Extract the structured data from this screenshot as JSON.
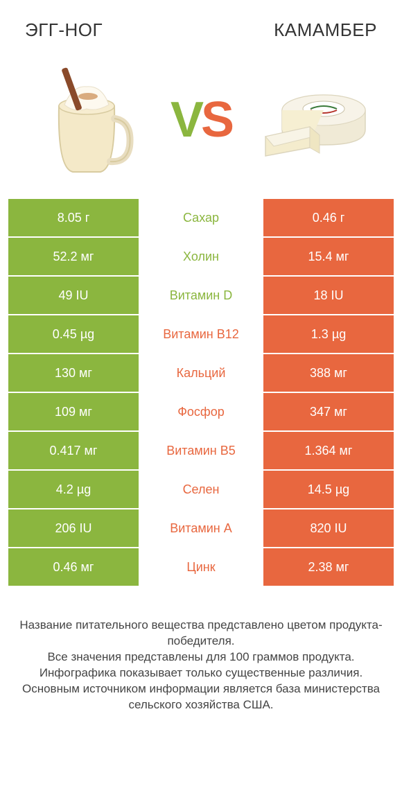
{
  "colors": {
    "green": "#8bb63f",
    "orange": "#e8673f",
    "white": "#ffffff",
    "text": "#333333"
  },
  "header": {
    "left": "ЭГГ-НОГ",
    "right": "КАМАМБЕР"
  },
  "vs": {
    "v": "V",
    "s": "S"
  },
  "rows": [
    {
      "left": "8.05 г",
      "mid": "Сахар",
      "right": "0.46 г",
      "winner": "left"
    },
    {
      "left": "52.2 мг",
      "mid": "Холин",
      "right": "15.4 мг",
      "winner": "left"
    },
    {
      "left": "49 IU",
      "mid": "Витамин D",
      "right": "18 IU",
      "winner": "left"
    },
    {
      "left": "0.45 µg",
      "mid": "Витамин B12",
      "right": "1.3 µg",
      "winner": "right"
    },
    {
      "left": "130 мг",
      "mid": "Кальций",
      "right": "388 мг",
      "winner": "right"
    },
    {
      "left": "109 мг",
      "mid": "Фосфор",
      "right": "347 мг",
      "winner": "right"
    },
    {
      "left": "0.417 мг",
      "mid": "Витамин B5",
      "right": "1.364 мг",
      "winner": "right"
    },
    {
      "left": "4.2 µg",
      "mid": "Селен",
      "right": "14.5 µg",
      "winner": "right"
    },
    {
      "left": "206 IU",
      "mid": "Витамин A",
      "right": "820 IU",
      "winner": "right"
    },
    {
      "left": "0.46 мг",
      "mid": "Цинк",
      "right": "2.38 мг",
      "winner": "right"
    }
  ],
  "footer": "Название питательного вещества представлено цветом продукта-победителя.\nВсе значения представлены для 100 граммов продукта.\nИнфографика показывает только существенные различия.\nОсновным источником информации является база министерства сельского хозяйства США."
}
